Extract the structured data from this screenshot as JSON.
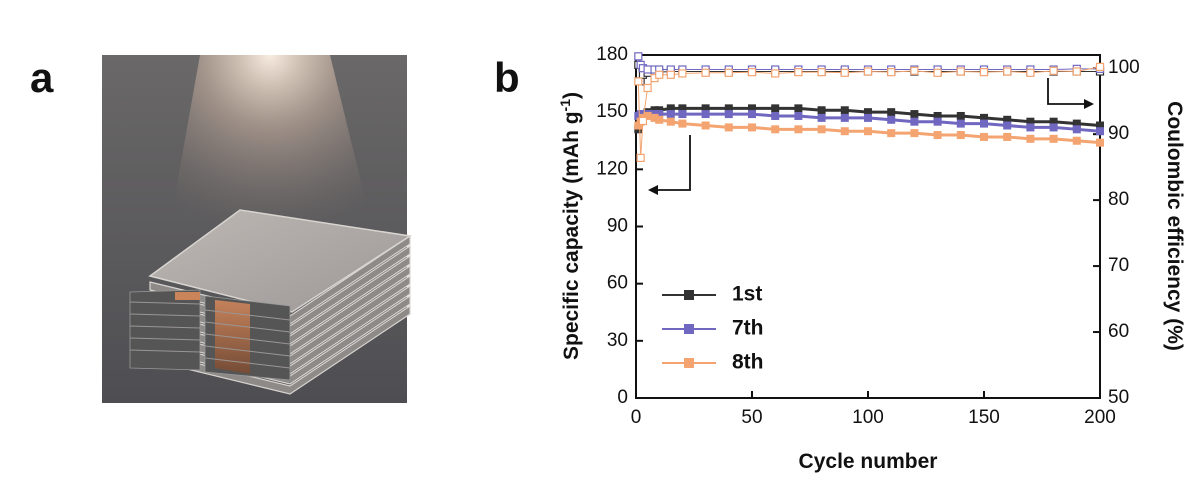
{
  "figure": {
    "panel_a_label": "a"
  },
  "chart_data": {
    "type": "line",
    "panel_label": "b",
    "xlabel": "Cycle number",
    "ylabel": {
      "text": "Specific capacity (mAh g",
      "superscript": "-1",
      "suffix": ")"
    },
    "y2label": "Coulombic efficiency (%)",
    "x": [
      1,
      2,
      3,
      5,
      8,
      10,
      15,
      20,
      30,
      40,
      50,
      60,
      70,
      80,
      90,
      100,
      110,
      120,
      130,
      140,
      150,
      160,
      170,
      180,
      190,
      200
    ],
    "xlim": [
      0,
      200
    ],
    "xticks": [
      0,
      50,
      100,
      150,
      200
    ],
    "ylim": [
      0,
      180
    ],
    "yticks": [
      0,
      30,
      60,
      90,
      120,
      150,
      180
    ],
    "y2lim": [
      50,
      102
    ],
    "y2ticks": [
      50,
      60,
      70,
      80,
      90,
      100
    ],
    "legend": "lower left",
    "series": [
      {
        "name": "1st",
        "color": "#333333",
        "marker": "filled",
        "values": [
          141,
          146,
          148,
          150,
          151,
          151,
          152,
          152,
          152,
          152,
          152,
          152,
          152,
          151,
          151,
          150,
          150,
          149,
          148,
          148,
          147,
          146,
          145,
          145,
          144,
          143
        ]
      },
      {
        "name": "7th",
        "color": "#7068c0",
        "marker": "filled",
        "values": [
          148,
          149,
          149,
          149,
          149,
          149,
          149,
          149,
          149,
          149,
          149,
          148,
          148,
          147,
          147,
          147,
          146,
          145,
          145,
          144,
          144,
          143,
          142,
          142,
          141,
          140
        ]
      },
      {
        "name": "8th",
        "color": "#f4a470",
        "marker": "filled",
        "values": [
          143,
          145,
          147,
          148,
          147,
          146,
          145,
          144,
          143,
          142,
          142,
          141,
          141,
          141,
          140,
          140,
          139,
          139,
          138,
          138,
          137,
          137,
          136,
          136,
          135,
          134
        ]
      },
      {
        "color": "#333333",
        "marker": "open",
        "axis": "y2",
        "values": [
          100.5,
          98,
          99,
          99.3,
          99.4,
          99.4,
          99.5,
          99.5,
          99.5,
          99.5,
          99.5,
          99.5,
          99.5,
          99.5,
          99.5,
          99.5,
          99.5,
          99.5,
          99.5,
          99.5,
          99.5,
          99.5,
          99.5,
          99.5,
          99.5,
          99.5
        ]
      },
      {
        "color": "#7068c0",
        "marker": "open",
        "axis": "y2",
        "values": [
          101.8,
          100.5,
          100,
          99.8,
          99.8,
          99.8,
          99.8,
          99.8,
          99.8,
          99.8,
          99.8,
          99.8,
          99.8,
          99.8,
          99.8,
          99.8,
          99.8,
          99.8,
          99.8,
          99.8,
          99.8,
          99.8,
          99.8,
          99.8,
          99.9,
          99.9
        ]
      },
      {
        "color": "#f4a470",
        "marker": "open",
        "axis": "y2",
        "values": [
          98,
          86.4,
          92,
          97,
          98.5,
          99,
          99,
          99.2,
          99.3,
          99.3,
          99.4,
          99.2,
          99.4,
          99.4,
          99.3,
          99.5,
          99.4,
          99.6,
          99.3,
          99.5,
          99.4,
          99.5,
          99.3,
          99.6,
          99.5,
          100.2
        ]
      }
    ]
  }
}
